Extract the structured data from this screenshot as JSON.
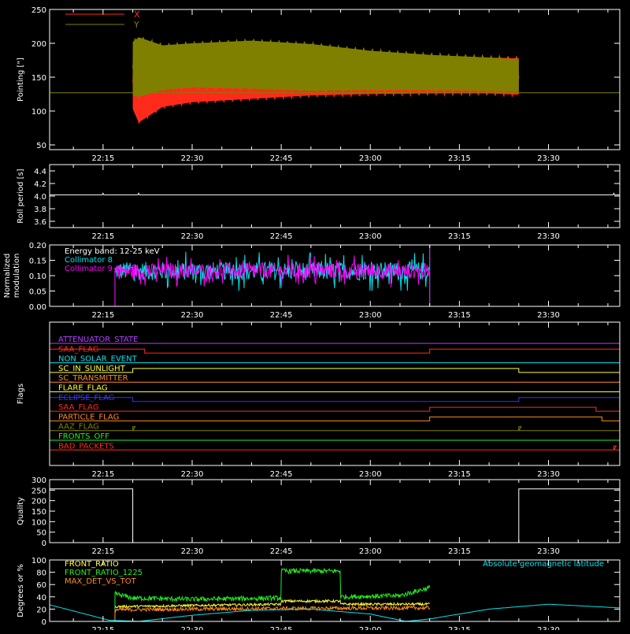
{
  "colors": {
    "background": "#000000",
    "axis": "#ffffff",
    "red": "#ff2a1a",
    "olive": "#808000",
    "cyan": "#00e5ee",
    "magenta": "#ff00ff",
    "yellow": "#ffff33",
    "green": "#22ee22",
    "orange": "#ff8a22",
    "blue": "#3333ff",
    "purple": "#b040ff"
  },
  "time_axis": {
    "range": [
      "22:06",
      "23:42"
    ],
    "tick_labels": [
      "22:15",
      "22:30",
      "22:45",
      "23:00",
      "23:15",
      "23:30"
    ]
  },
  "chart_data": [
    {
      "id": "pointing",
      "type": "line",
      "ylabel": "Pointing [\"]",
      "ylim": [
        43,
        250
      ],
      "yticks": [
        50,
        100,
        150,
        200,
        250
      ],
      "legend": [
        {
          "name": "X",
          "color": "#ff2a1a"
        },
        {
          "name": "Y",
          "color": "#808000"
        }
      ],
      "reference_line": 127,
      "series": [
        {
          "name": "X",
          "note": "oscillation envelope (min/max) from 22:20 to 23:25",
          "x": [
            "22:20",
            "22:21",
            "22:25",
            "22:30",
            "22:40",
            "22:50",
            "23:00",
            "23:10",
            "23:20",
            "23:25"
          ],
          "ymin": [
            100,
            80,
            103,
            110,
            115,
            120,
            122,
            123,
            123,
            121
          ],
          "ymax": [
            185,
            195,
            190,
            188,
            186,
            185,
            184,
            183,
            182,
            181
          ]
        },
        {
          "name": "Y",
          "note": "oscillation envelope (min/max) from 22:20 to 23:25",
          "x": [
            "22:20",
            "22:21",
            "22:25",
            "22:30",
            "22:40",
            "22:50",
            "23:00",
            "23:10",
            "23:20",
            "23:25"
          ],
          "ymin": [
            120,
            118,
            128,
            132,
            130,
            127,
            128,
            128,
            127,
            126
          ],
          "ymax": [
            205,
            212,
            200,
            203,
            207,
            202,
            192,
            186,
            182,
            179
          ]
        }
      ]
    },
    {
      "id": "roll_period",
      "type": "line",
      "ylabel": "Roll period [s]",
      "ylim": [
        3.5,
        4.5
      ],
      "yticks": [
        3.6,
        3.8,
        4.0,
        4.2,
        4.4
      ],
      "ytick_labels": [
        "3.6",
        "3.8",
        "4.0",
        "4.2",
        "4.4"
      ],
      "series": [
        {
          "name": "roll",
          "x": [
            "22:06",
            "23:42"
          ],
          "y": [
            4.02,
            4.02
          ]
        }
      ]
    },
    {
      "id": "modulation",
      "type": "line",
      "ylabel": "Normalized modulation",
      "ylim": [
        0,
        0.2
      ],
      "yticks": [
        0,
        0.05,
        0.1,
        0.15,
        0.2
      ],
      "ytick_labels": [
        "0.00",
        "0.05",
        "0.10",
        "0.15",
        "0.20"
      ],
      "legend": [
        {
          "name": "Energy band: 12-25 keV",
          "color": "#ffffff"
        },
        {
          "name": "Collimator 8",
          "color": "#00e5ee"
        },
        {
          "name": "Collimator 9",
          "color": "#ff00ff"
        }
      ],
      "series": [
        {
          "name": "Collimator 8",
          "x_start": "22:17",
          "x_end": "23:10",
          "mean": 0.115,
          "spread": 0.03
        },
        {
          "name": "Collimator 9",
          "x_start": "22:17",
          "x_end": "23:10",
          "mean": 0.115,
          "spread": 0.025
        }
      ]
    },
    {
      "id": "flags",
      "type": "line",
      "ylabel": "Flags",
      "series": [
        {
          "name": "ATTENUATOR_STATE",
          "color": "#b040ff",
          "transitions": []
        },
        {
          "name": "SAA_FLAG",
          "color": "#ff2a1a",
          "transitions": [
            [
              "22:06",
              1
            ],
            [
              "22:22",
              0
            ],
            [
              "23:10",
              1
            ]
          ]
        },
        {
          "name": "NON_SOLAR_EVENT",
          "color": "#00e5ee",
          "transitions": []
        },
        {
          "name": "SC_IN_SUNLIGHT",
          "color": "#ffff33",
          "transitions": [
            [
              "22:06",
              0
            ],
            [
              "22:20",
              1
            ],
            [
              "23:25",
              0
            ]
          ]
        },
        {
          "name": "SC_TRANSMITTER",
          "color": "#ff8a22",
          "transitions": []
        },
        {
          "name": "FLARE_FLAG",
          "color": "#ffff33",
          "transitions": []
        },
        {
          "name": "ECLIPSE_FLAG",
          "color": "#3333ff",
          "transitions": [
            [
              "22:06",
              1
            ],
            [
              "22:20",
              0
            ],
            [
              "23:25",
              1
            ]
          ]
        },
        {
          "name": "SAA_FLAG",
          "color": "#ff2a1a",
          "transitions": [
            [
              "22:06",
              0
            ],
            [
              "23:10",
              1
            ],
            [
              "23:38",
              0
            ]
          ]
        },
        {
          "name": "PARTICLE_FLAG",
          "color": "#ff8a22",
          "transitions": [
            [
              "22:06",
              0
            ],
            [
              "23:10",
              1
            ],
            [
              "23:39",
              0
            ]
          ]
        },
        {
          "name": "AAZ_FLAG",
          "color": "#808000",
          "transitions": [
            [
              "22:06",
              0
            ],
            [
              "22:20",
              1
            ],
            [
              "22:20",
              0
            ],
            [
              "23:25",
              1
            ],
            [
              "23:25",
              0
            ]
          ]
        },
        {
          "name": "FRONTS_OFF",
          "color": "#22ee22",
          "transitions": []
        },
        {
          "name": "BAD_PACKETS",
          "color": "#ff2a1a",
          "transitions": [
            [
              "22:06",
              0
            ],
            [
              "23:41",
              1
            ],
            [
              "23:41",
              0
            ]
          ]
        }
      ]
    },
    {
      "id": "quality",
      "type": "line",
      "ylabel": "Quality",
      "ylim": [
        0,
        300
      ],
      "yticks": [
        0,
        50,
        100,
        150,
        200,
        250,
        300
      ],
      "series": [
        {
          "name": "quality",
          "x": [
            "22:06",
            "22:20",
            "22:20",
            "23:25",
            "23:25",
            "23:42"
          ],
          "y": [
            256,
            256,
            0,
            0,
            256,
            256
          ]
        }
      ]
    },
    {
      "id": "ratios",
      "type": "line",
      "ylabel": "Degrees or %",
      "ylim": [
        0,
        100
      ],
      "yticks": [
        0,
        20,
        40,
        60,
        80,
        100
      ],
      "legend": [
        {
          "name": "FRONT_RATIO",
          "color": "#ffff33"
        },
        {
          "name": "FRONT_RATIO_1225",
          "color": "#22ee22"
        },
        {
          "name": "MAX_DET_VS_TOT",
          "color": "#ff8a22"
        },
        {
          "name": "Absolute geomagnetic latitude",
          "color": "#00e5ee"
        }
      ],
      "series": [
        {
          "name": "FRONT_RATIO",
          "x": [
            "22:17",
            "22:45",
            "22:45",
            "22:55",
            "22:55",
            "23:10"
          ],
          "y": [
            24,
            28,
            33,
            33,
            28,
            28
          ]
        },
        {
          "name": "FRONT_RATIO_1225",
          "x": [
            "22:17",
            "22:20",
            "22:30",
            "22:45",
            "22:45",
            "22:55",
            "22:55",
            "23:05",
            "23:10"
          ],
          "y": [
            45,
            38,
            36,
            38,
            82,
            82,
            40,
            42,
            55
          ]
        },
        {
          "name": "MAX_DET_VS_TOT",
          "x": [
            "22:17",
            "22:45",
            "23:10"
          ],
          "y": [
            19,
            21,
            22
          ]
        },
        {
          "name": "Absolute geomagnetic latitude",
          "x": [
            "22:06",
            "22:16",
            "22:21",
            "22:30",
            "22:40",
            "22:50",
            "23:00",
            "23:06",
            "23:10",
            "23:20",
            "23:30",
            "23:42"
          ],
          "y": [
            27,
            2,
            0,
            10,
            18,
            20,
            12,
            0,
            4,
            20,
            28,
            22
          ]
        }
      ]
    }
  ]
}
